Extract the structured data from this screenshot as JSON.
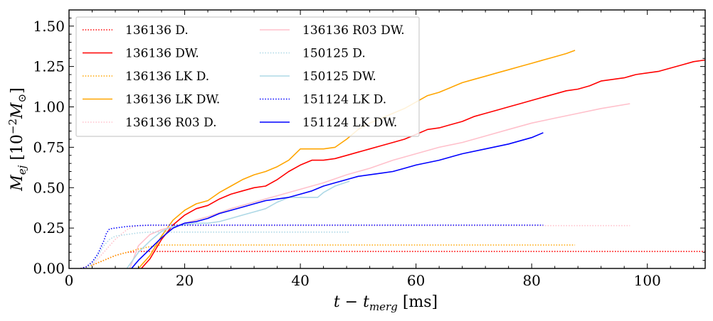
{
  "chart_data": {
    "type": "line",
    "xlabel": "t − t_merg [ms]",
    "xlabel_main": "t − t",
    "xlabel_sub": "merg",
    "xlabel_unit": " [ms]",
    "ylabel": "M_ej [10^-2 M_⊙]",
    "ylabel_main": "M",
    "ylabel_sub": "ej",
    "ylabel_unit": " [10",
    "ylabel_exp": "−2",
    "ylabel_msun": "M",
    "ylabel_msun_sub": "⊙",
    "ylabel_close": "]",
    "xlim": [
      0,
      110
    ],
    "ylim": [
      0,
      1.6
    ],
    "xticks": [
      0,
      20,
      40,
      60,
      80,
      100
    ],
    "xtick_labels": [
      "0",
      "20",
      "40",
      "60",
      "80",
      "100"
    ],
    "yticks": [
      0.0,
      0.25,
      0.5,
      0.75,
      1.0,
      1.25,
      1.5
    ],
    "ytick_labels": [
      "0.00",
      "0.25",
      "0.50",
      "0.75",
      "1.00",
      "1.25",
      "1.50"
    ],
    "grid": false,
    "legend_position": "top-left",
    "legend_columns": 2,
    "series": [
      {
        "name": "136136 D.",
        "color": "#ff0000",
        "dash": "dotted",
        "x": [
          2,
          3,
          4,
          5,
          6,
          7,
          8,
          9,
          10,
          12,
          15,
          20,
          40,
          60,
          80,
          100,
          110
        ],
        "y": [
          0,
          0.01,
          0.02,
          0.035,
          0.05,
          0.065,
          0.08,
          0.09,
          0.1,
          0.105,
          0.105,
          0.105,
          0.105,
          0.105,
          0.105,
          0.105,
          0.105
        ]
      },
      {
        "name": "136136 DW.",
        "color": "#ff0000",
        "dash": "solid",
        "x": [
          12.5,
          14,
          16,
          18,
          20,
          22,
          24,
          26,
          28,
          30,
          32,
          34,
          36,
          38,
          40,
          42,
          44,
          46,
          48,
          50,
          52,
          54,
          56,
          58,
          60,
          62,
          64,
          66,
          68,
          70,
          72,
          74,
          76,
          78,
          80,
          82,
          84,
          86,
          88,
          90,
          92,
          94,
          96,
          98,
          100,
          102,
          104,
          106,
          108,
          110
        ],
        "y": [
          0,
          0.06,
          0.18,
          0.27,
          0.33,
          0.37,
          0.39,
          0.43,
          0.46,
          0.48,
          0.5,
          0.51,
          0.55,
          0.6,
          0.64,
          0.67,
          0.67,
          0.68,
          0.7,
          0.72,
          0.74,
          0.76,
          0.78,
          0.8,
          0.83,
          0.86,
          0.87,
          0.89,
          0.91,
          0.94,
          0.96,
          0.98,
          1.0,
          1.02,
          1.04,
          1.06,
          1.08,
          1.1,
          1.11,
          1.13,
          1.16,
          1.17,
          1.18,
          1.2,
          1.21,
          1.22,
          1.24,
          1.26,
          1.28,
          1.29
        ]
      },
      {
        "name": "136136 LK D.",
        "color": "#ffa500",
        "dash": "dotted",
        "x": [
          2,
          4,
          6,
          8,
          10,
          12,
          14,
          16,
          20,
          40,
          60,
          80,
          87.5
        ],
        "y": [
          0,
          0.02,
          0.05,
          0.08,
          0.1,
          0.12,
          0.135,
          0.145,
          0.145,
          0.145,
          0.145,
          0.145,
          0.145
        ]
      },
      {
        "name": "136136 LK DW.",
        "color": "#ffa500",
        "dash": "solid",
        "x": [
          12,
          14,
          16,
          18,
          20,
          22,
          24,
          26,
          28,
          30,
          32,
          34,
          36,
          38,
          40,
          42,
          44,
          46,
          48,
          50,
          52,
          54,
          56,
          58,
          60,
          62,
          64,
          66,
          68,
          70,
          72,
          74,
          76,
          78,
          80,
          82,
          84,
          86,
          87.5
        ],
        "y": [
          0,
          0.08,
          0.2,
          0.3,
          0.36,
          0.4,
          0.42,
          0.47,
          0.51,
          0.55,
          0.58,
          0.6,
          0.63,
          0.67,
          0.74,
          0.74,
          0.74,
          0.75,
          0.8,
          0.86,
          0.9,
          0.93,
          0.96,
          0.99,
          1.03,
          1.07,
          1.09,
          1.12,
          1.15,
          1.17,
          1.19,
          1.21,
          1.23,
          1.25,
          1.27,
          1.29,
          1.31,
          1.33,
          1.35
        ]
      },
      {
        "name": "136136 R03 D.",
        "color": "#ffc0cb",
        "dash": "dotted",
        "x": [
          4,
          5,
          6,
          7,
          8,
          9,
          10,
          11,
          12,
          14,
          20,
          40,
          60,
          80,
          97
        ],
        "y": [
          0.02,
          0.06,
          0.1,
          0.14,
          0.18,
          0.21,
          0.24,
          0.255,
          0.265,
          0.265,
          0.265,
          0.265,
          0.265,
          0.265,
          0.265
        ]
      },
      {
        "name": "136136 R03 DW.",
        "color": "#ffc0cb",
        "dash": "solid",
        "x": [
          10.5,
          12,
          14,
          16,
          18,
          20,
          24,
          28,
          32,
          36,
          40,
          44,
          48,
          52,
          56,
          60,
          64,
          68,
          72,
          76,
          80,
          84,
          88,
          92,
          97
        ],
        "y": [
          0,
          0.14,
          0.21,
          0.24,
          0.26,
          0.28,
          0.32,
          0.37,
          0.41,
          0.45,
          0.49,
          0.53,
          0.58,
          0.62,
          0.67,
          0.71,
          0.75,
          0.78,
          0.82,
          0.86,
          0.9,
          0.93,
          0.96,
          0.99,
          1.02
        ]
      },
      {
        "name": "150125 D.",
        "color": "#add8e6",
        "dash": "dotted",
        "x": [
          3,
          4,
          5,
          6,
          7,
          8,
          10,
          12,
          14,
          20,
          30,
          40,
          48.5
        ],
        "y": [
          0,
          0.03,
          0.08,
          0.14,
          0.18,
          0.2,
          0.21,
          0.22,
          0.225,
          0.225,
          0.225,
          0.225,
          0.225
        ]
      },
      {
        "name": "150125 DW.",
        "color": "#add8e6",
        "dash": "solid",
        "x": [
          10,
          12,
          14,
          16,
          18,
          20,
          22,
          24,
          26,
          28,
          30,
          32,
          34,
          36,
          38,
          40,
          42,
          43,
          44,
          46,
          48.5
        ],
        "y": [
          0,
          0.1,
          0.17,
          0.23,
          0.26,
          0.27,
          0.28,
          0.28,
          0.29,
          0.31,
          0.33,
          0.35,
          0.37,
          0.41,
          0.44,
          0.44,
          0.44,
          0.44,
          0.47,
          0.51,
          0.54
        ]
      },
      {
        "name": "151124 LK D.",
        "color": "#0000ff",
        "dash": "dotted",
        "x": [
          2,
          3,
          4,
          5,
          6,
          6.5,
          7,
          8,
          9,
          10,
          12,
          14,
          20,
          40,
          60,
          82
        ],
        "y": [
          0,
          0.01,
          0.04,
          0.09,
          0.17,
          0.22,
          0.245,
          0.25,
          0.255,
          0.26,
          0.265,
          0.268,
          0.268,
          0.268,
          0.268,
          0.268
        ]
      },
      {
        "name": "151124 LK DW.",
        "color": "#0000ff",
        "dash": "solid",
        "x": [
          10.8,
          12,
          14,
          16,
          18,
          20,
          22,
          24,
          26,
          28,
          30,
          32,
          34,
          36,
          38,
          40,
          42,
          44,
          46,
          48,
          50,
          52,
          54,
          56,
          58,
          60,
          64,
          68,
          72,
          76,
          80,
          82
        ],
        "y": [
          0,
          0.05,
          0.12,
          0.19,
          0.25,
          0.28,
          0.29,
          0.31,
          0.34,
          0.36,
          0.38,
          0.4,
          0.42,
          0.43,
          0.44,
          0.46,
          0.48,
          0.51,
          0.53,
          0.55,
          0.57,
          0.58,
          0.59,
          0.6,
          0.62,
          0.64,
          0.67,
          0.71,
          0.74,
          0.77,
          0.81,
          0.84
        ]
      }
    ]
  }
}
